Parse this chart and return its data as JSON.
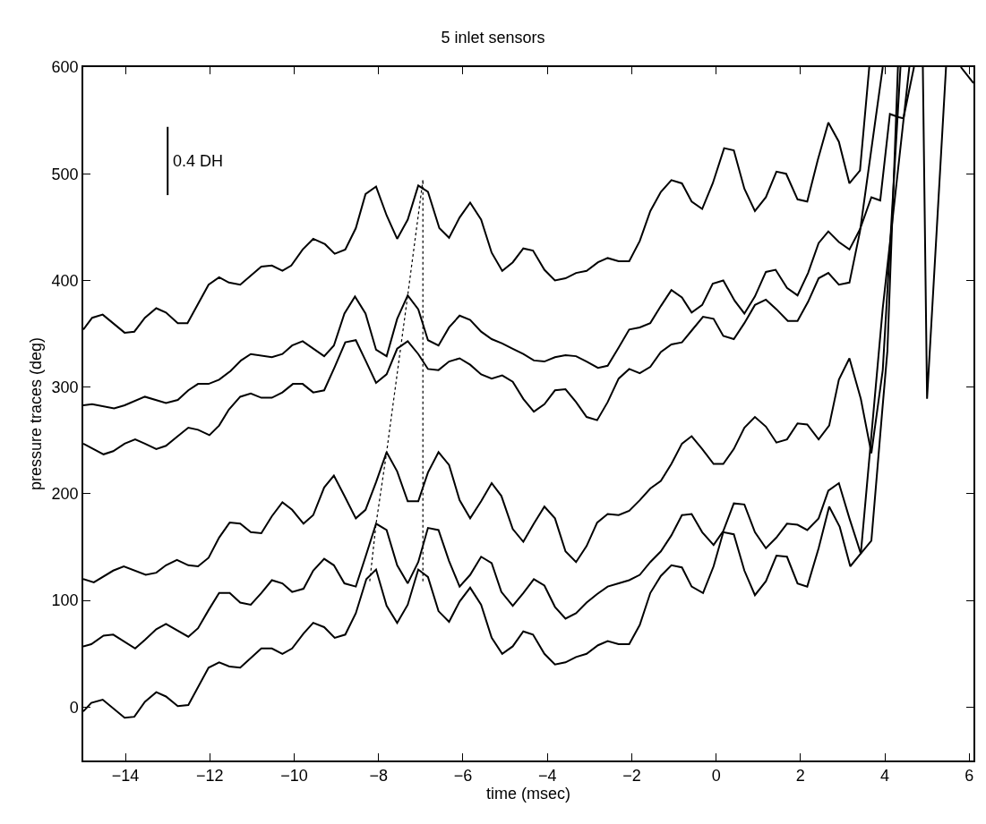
{
  "chart_data": {
    "type": "line",
    "title": "5 inlet sensors",
    "xlabel": "time (msec)",
    "ylabel": "pressure traces (deg)",
    "xlim": [
      -15,
      6.1
    ],
    "xticks": [
      -14,
      -12,
      -10,
      -8,
      -6,
      -4,
      -2,
      0,
      2,
      4,
      6
    ],
    "ylim": [
      -50,
      600
    ],
    "yticks": [
      0,
      100,
      200,
      300,
      400,
      500,
      600
    ],
    "marker": "none",
    "line_style": "solid",
    "series": [
      {
        "color": "#000000",
        "x": [
          -15,
          -14.79,
          -14.54,
          -14.02,
          -13.79,
          -13.54,
          -13.27,
          -13.04,
          -12.76,
          -12.53,
          -12.03,
          -11.78,
          -11.55,
          -11.28,
          -10.78,
          -10.53,
          -10.28,
          -10.07,
          -9.8,
          -9.55,
          -9.27,
          -9.04,
          -8.79,
          -8.54,
          -8.31,
          -8.06,
          -7.81,
          -7.56,
          -7.31,
          -7.06,
          -6.83,
          -6.56,
          -6.33,
          -6.08,
          -5.83,
          -5.57,
          -5.32,
          -5.07,
          -4.82,
          -4.57,
          -4.34,
          -4.07,
          -3.82,
          -3.57,
          -3.32,
          -3.07,
          -2.8,
          -2.57,
          -2.31,
          -2.06,
          -1.81,
          -1.56,
          -1.31,
          -1.06,
          -0.81,
          -0.58,
          -0.33,
          -0.08,
          0.19,
          0.42,
          0.67,
          0.92,
          1.18,
          1.43,
          1.66,
          1.93,
          2.16,
          2.41,
          2.66,
          2.91,
          3.16,
          3.41,
          3.63,
          4.2,
          4.9,
          5.0,
          5.45
        ],
        "values": [
          354,
          365,
          368,
          351,
          352,
          365,
          374,
          370,
          360,
          360,
          396,
          403,
          398,
          396,
          413,
          414,
          409,
          414,
          429,
          439,
          434,
          425,
          429,
          449,
          481,
          488,
          461,
          439,
          457,
          489,
          483,
          449,
          440,
          459,
          473,
          457,
          426,
          409,
          417,
          430,
          428,
          410,
          400,
          402,
          407,
          409,
          417,
          421,
          418,
          418,
          437,
          465,
          483,
          494,
          491,
          474,
          467,
          491,
          524,
          522,
          486,
          465,
          478,
          502,
          500,
          476,
          474,
          513,
          548,
          530,
          491,
          503,
          600,
          null,
          600,
          289,
          600
        ]
      },
      {
        "color": "#000000",
        "x": [
          -15,
          -14.79,
          -14.27,
          -14.02,
          -13.54,
          -13.04,
          -12.76,
          -12.51,
          -12.28,
          -12.03,
          -11.78,
          -11.51,
          -11.26,
          -11.03,
          -10.53,
          -10.28,
          -10.05,
          -9.8,
          -9.29,
          -9.06,
          -8.81,
          -8.56,
          -8.31,
          -8.06,
          -7.81,
          -7.56,
          -7.31,
          -7.06,
          -6.83,
          -6.58,
          -6.33,
          -6.08,
          -5.83,
          -5.57,
          -5.32,
          -5.07,
          -4.82,
          -4.57,
          -4.32,
          -4.07,
          -3.82,
          -3.57,
          -3.32,
          -3.07,
          -2.8,
          -2.57,
          -2.31,
          -2.06,
          -1.81,
          -1.56,
          -1.31,
          -1.06,
          -0.81,
          -0.58,
          -0.33,
          -0.08,
          0.17,
          0.44,
          0.67,
          0.92,
          1.18,
          1.41,
          1.68,
          1.93,
          2.18,
          2.43,
          2.66,
          2.91,
          3.16,
          3.41,
          3.68,
          3.89,
          4.12,
          4.33,
          4.44,
          4.69,
          5.2,
          5.8,
          6.0,
          6.1
        ],
        "values": [
          283,
          284,
          280,
          283,
          291,
          285,
          288,
          297,
          303,
          303,
          307,
          315,
          325,
          331,
          328,
          331,
          339,
          343,
          329,
          339,
          369,
          385,
          369,
          335,
          329,
          364,
          386,
          373,
          344,
          339,
          356,
          367,
          363,
          352,
          345,
          341,
          336,
          331,
          325,
          324,
          328,
          330,
          329,
          324,
          318,
          320,
          337,
          354,
          356,
          360,
          376,
          391,
          384,
          370,
          377,
          397,
          400,
          381,
          369,
          385,
          408,
          410,
          393,
          386,
          407,
          435,
          446,
          436,
          429,
          448,
          478,
          475,
          556,
          553,
          552,
          600,
          null,
          600,
          590,
          585
        ]
      },
      {
        "color": "#000000",
        "x": [
          -15,
          -14.52,
          -14.29,
          -14.02,
          -13.77,
          -13.54,
          -13.27,
          -13.04,
          -12.76,
          -12.51,
          -12.28,
          -12.01,
          -11.78,
          -11.55,
          -11.28,
          -11.03,
          -10.78,
          -10.53,
          -10.28,
          -10.03,
          -9.8,
          -9.55,
          -9.29,
          -9.04,
          -8.79,
          -8.54,
          -8.31,
          -8.06,
          -7.81,
          -7.56,
          -7.31,
          -7.06,
          -6.83,
          -6.58,
          -6.33,
          -6.08,
          -5.83,
          -5.57,
          -5.32,
          -5.07,
          -4.82,
          -4.57,
          -4.32,
          -4.07,
          -3.82,
          -3.57,
          -3.32,
          -3.07,
          -2.82,
          -2.57,
          -2.31,
          -2.06,
          -1.81,
          -1.56,
          -1.31,
          -1.06,
          -0.81,
          -0.58,
          -0.31,
          -0.06,
          0.17,
          0.42,
          0.67,
          0.92,
          1.18,
          1.43,
          1.7,
          1.93,
          2.18,
          2.43,
          2.66,
          2.91,
          3.16,
          3.41,
          3.95
        ],
        "values": [
          247,
          237,
          240,
          247,
          251,
          247,
          242,
          245,
          254,
          262,
          260,
          255,
          264,
          279,
          291,
          294,
          290,
          290,
          295,
          303,
          303,
          295,
          297,
          319,
          342,
          344,
          325,
          304,
          312,
          336,
          343,
          331,
          317,
          316,
          324,
          327,
          321,
          312,
          308,
          311,
          305,
          289,
          277,
          284,
          297,
          298,
          286,
          272,
          269,
          286,
          308,
          317,
          313,
          319,
          333,
          340,
          342,
          353,
          366,
          364,
          348,
          345,
          360,
          377,
          382,
          373,
          362,
          362,
          380,
          402,
          407,
          396,
          398,
          446,
          600
        ]
      },
      {
        "color": "#000000",
        "x": [
          -15,
          -14.75,
          -14.29,
          -14.04,
          -13.52,
          -13.27,
          -13.04,
          -12.78,
          -12.51,
          -12.28,
          -12.03,
          -11.78,
          -11.53,
          -11.28,
          -11.03,
          -10.78,
          -10.53,
          -10.28,
          -10.05,
          -9.78,
          -9.55,
          -9.29,
          -9.06,
          -8.81,
          -8.54,
          -8.31,
          -8.06,
          -7.81,
          -7.56,
          -7.31,
          -7.06,
          -6.83,
          -6.58,
          -6.33,
          -6.08,
          -5.83,
          -5.57,
          -5.32,
          -5.09,
          -4.82,
          -4.57,
          -4.32,
          -4.07,
          -3.82,
          -3.57,
          -3.32,
          -3.07,
          -2.82,
          -2.57,
          -2.31,
          -2.06,
          -1.81,
          -1.56,
          -1.31,
          -1.06,
          -0.81,
          -0.58,
          -0.33,
          -0.06,
          0.17,
          0.42,
          0.67,
          0.92,
          1.18,
          1.43,
          1.68,
          1.93,
          2.16,
          2.43,
          2.68,
          2.91,
          3.16,
          3.43,
          3.68,
          3.95,
          4.37
        ],
        "values": [
          120,
          117,
          128,
          132,
          124,
          126,
          133,
          138,
          133,
          132,
          140,
          159,
          173,
          172,
          164,
          163,
          179,
          192,
          185,
          172,
          180,
          206,
          217,
          198,
          177,
          185,
          211,
          239,
          221,
          193,
          193,
          220,
          239,
          227,
          194,
          177,
          193,
          210,
          198,
          167,
          155,
          172,
          188,
          177,
          146,
          136,
          151,
          173,
          181,
          180,
          184,
          194,
          205,
          212,
          228,
          247,
          254,
          242,
          228,
          228,
          242,
          262,
          272,
          263,
          248,
          251,
          266,
          265,
          251,
          264,
          307,
          327,
          289,
          238,
          316,
          600
        ]
      },
      {
        "color": "#000000",
        "x": [
          -15,
          -14.81,
          -14.52,
          -14.29,
          -13.77,
          -13.54,
          -13.27,
          -13.04,
          -12.51,
          -12.28,
          -12.03,
          -11.78,
          -11.53,
          -11.28,
          -11.03,
          -10.78,
          -10.53,
          -10.28,
          -10.05,
          -9.78,
          -9.55,
          -9.29,
          -9.06,
          -8.81,
          -8.54,
          -8.31,
          -8.06,
          -7.81,
          -7.56,
          -7.31,
          -7.06,
          -6.83,
          -6.58,
          -6.33,
          -6.08,
          -5.83,
          -5.57,
          -5.32,
          -5.09,
          -4.82,
          -4.57,
          -4.32,
          -4.07,
          -3.82,
          -3.57,
          -3.32,
          -3.07,
          -2.82,
          -2.57,
          -2.31,
          -2.06,
          -1.81,
          -1.56,
          -1.31,
          -1.06,
          -0.81,
          -0.58,
          -0.33,
          -0.06,
          0.17,
          0.42,
          0.67,
          0.92,
          1.18,
          1.43,
          1.68,
          1.93,
          2.16,
          2.43,
          2.66,
          2.91,
          3.16,
          3.43,
          3.68,
          3.93,
          4.06,
          4.31
        ],
        "values": [
          57,
          59,
          67,
          68,
          55,
          63,
          73,
          78,
          66,
          74,
          91,
          107,
          107,
          98,
          96,
          107,
          119,
          116,
          108,
          111,
          128,
          139,
          133,
          116,
          113,
          141,
          172,
          166,
          133,
          116,
          136,
          168,
          166,
          137,
          113,
          124,
          141,
          135,
          108,
          95,
          107,
          120,
          114,
          94,
          83,
          88,
          98,
          106,
          113,
          116,
          119,
          124,
          136,
          146,
          161,
          180,
          181,
          164,
          152,
          165,
          191,
          190,
          164,
          149,
          159,
          172,
          171,
          166,
          177,
          203,
          210,
          177,
          144,
          156,
          274,
          334,
          600
        ]
      },
      {
        "color": "#000000",
        "x": [
          -15,
          -14.81,
          -14.54,
          -14.02,
          -13.79,
          -13.54,
          -13.27,
          -13.04,
          -12.76,
          -12.51,
          -12.03,
          -11.78,
          -11.53,
          -11.28,
          -10.78,
          -10.53,
          -10.28,
          -10.05,
          -9.78,
          -9.55,
          -9.29,
          -9.04,
          -8.79,
          -8.54,
          -8.29,
          -8.06,
          -7.81,
          -7.56,
          -7.31,
          -7.06,
          -6.83,
          -6.58,
          -6.33,
          -6.08,
          -5.83,
          -5.57,
          -5.32,
          -5.07,
          -4.82,
          -4.57,
          -4.34,
          -4.07,
          -3.82,
          -3.57,
          -3.32,
          -3.07,
          -2.8,
          -2.57,
          -2.31,
          -2.06,
          -1.81,
          -1.56,
          -1.31,
          -1.06,
          -0.81,
          -0.58,
          -0.31,
          -0.06,
          0.17,
          0.42,
          0.67,
          0.92,
          1.18,
          1.43,
          1.68,
          1.93,
          2.16,
          2.43,
          2.68,
          2.93,
          3.18,
          3.43,
          3.95,
          4.58
        ],
        "values": [
          -4,
          4,
          7,
          -10,
          -9,
          5,
          14,
          10,
          1,
          2,
          37,
          42,
          38,
          37,
          55,
          55,
          50,
          55,
          69,
          79,
          75,
          65,
          68,
          88,
          120,
          129,
          95,
          79,
          96,
          129,
          122,
          90,
          80,
          99,
          112,
          96,
          65,
          50,
          57,
          71,
          68,
          50,
          40,
          42,
          47,
          50,
          58,
          62,
          59,
          59,
          77,
          107,
          123,
          133,
          131,
          113,
          107,
          132,
          164,
          162,
          128,
          105,
          118,
          142,
          141,
          116,
          113,
          149,
          188,
          169,
          132,
          144,
          374,
          600
        ]
      },
      {
        "color": "#000000",
        "line_style": "dotted",
        "x": [
          -8.21,
          -8.06,
          -7.81,
          -7.31,
          -6.95
        ],
        "values": [
          118,
          172,
          239,
          386,
          494
        ]
      },
      {
        "color": "#000000",
        "line_style": "dotted",
        "x": [
          -6.95,
          -6.95
        ],
        "values": [
          118,
          494
        ]
      },
      {
        "color": "#000000",
        "x": [
          -13.0,
          -13.0
        ],
        "values": [
          480,
          544
        ]
      }
    ],
    "annotations": [
      {
        "text": "0.4 DH",
        "x": -13.0,
        "y": 512
      }
    ]
  }
}
